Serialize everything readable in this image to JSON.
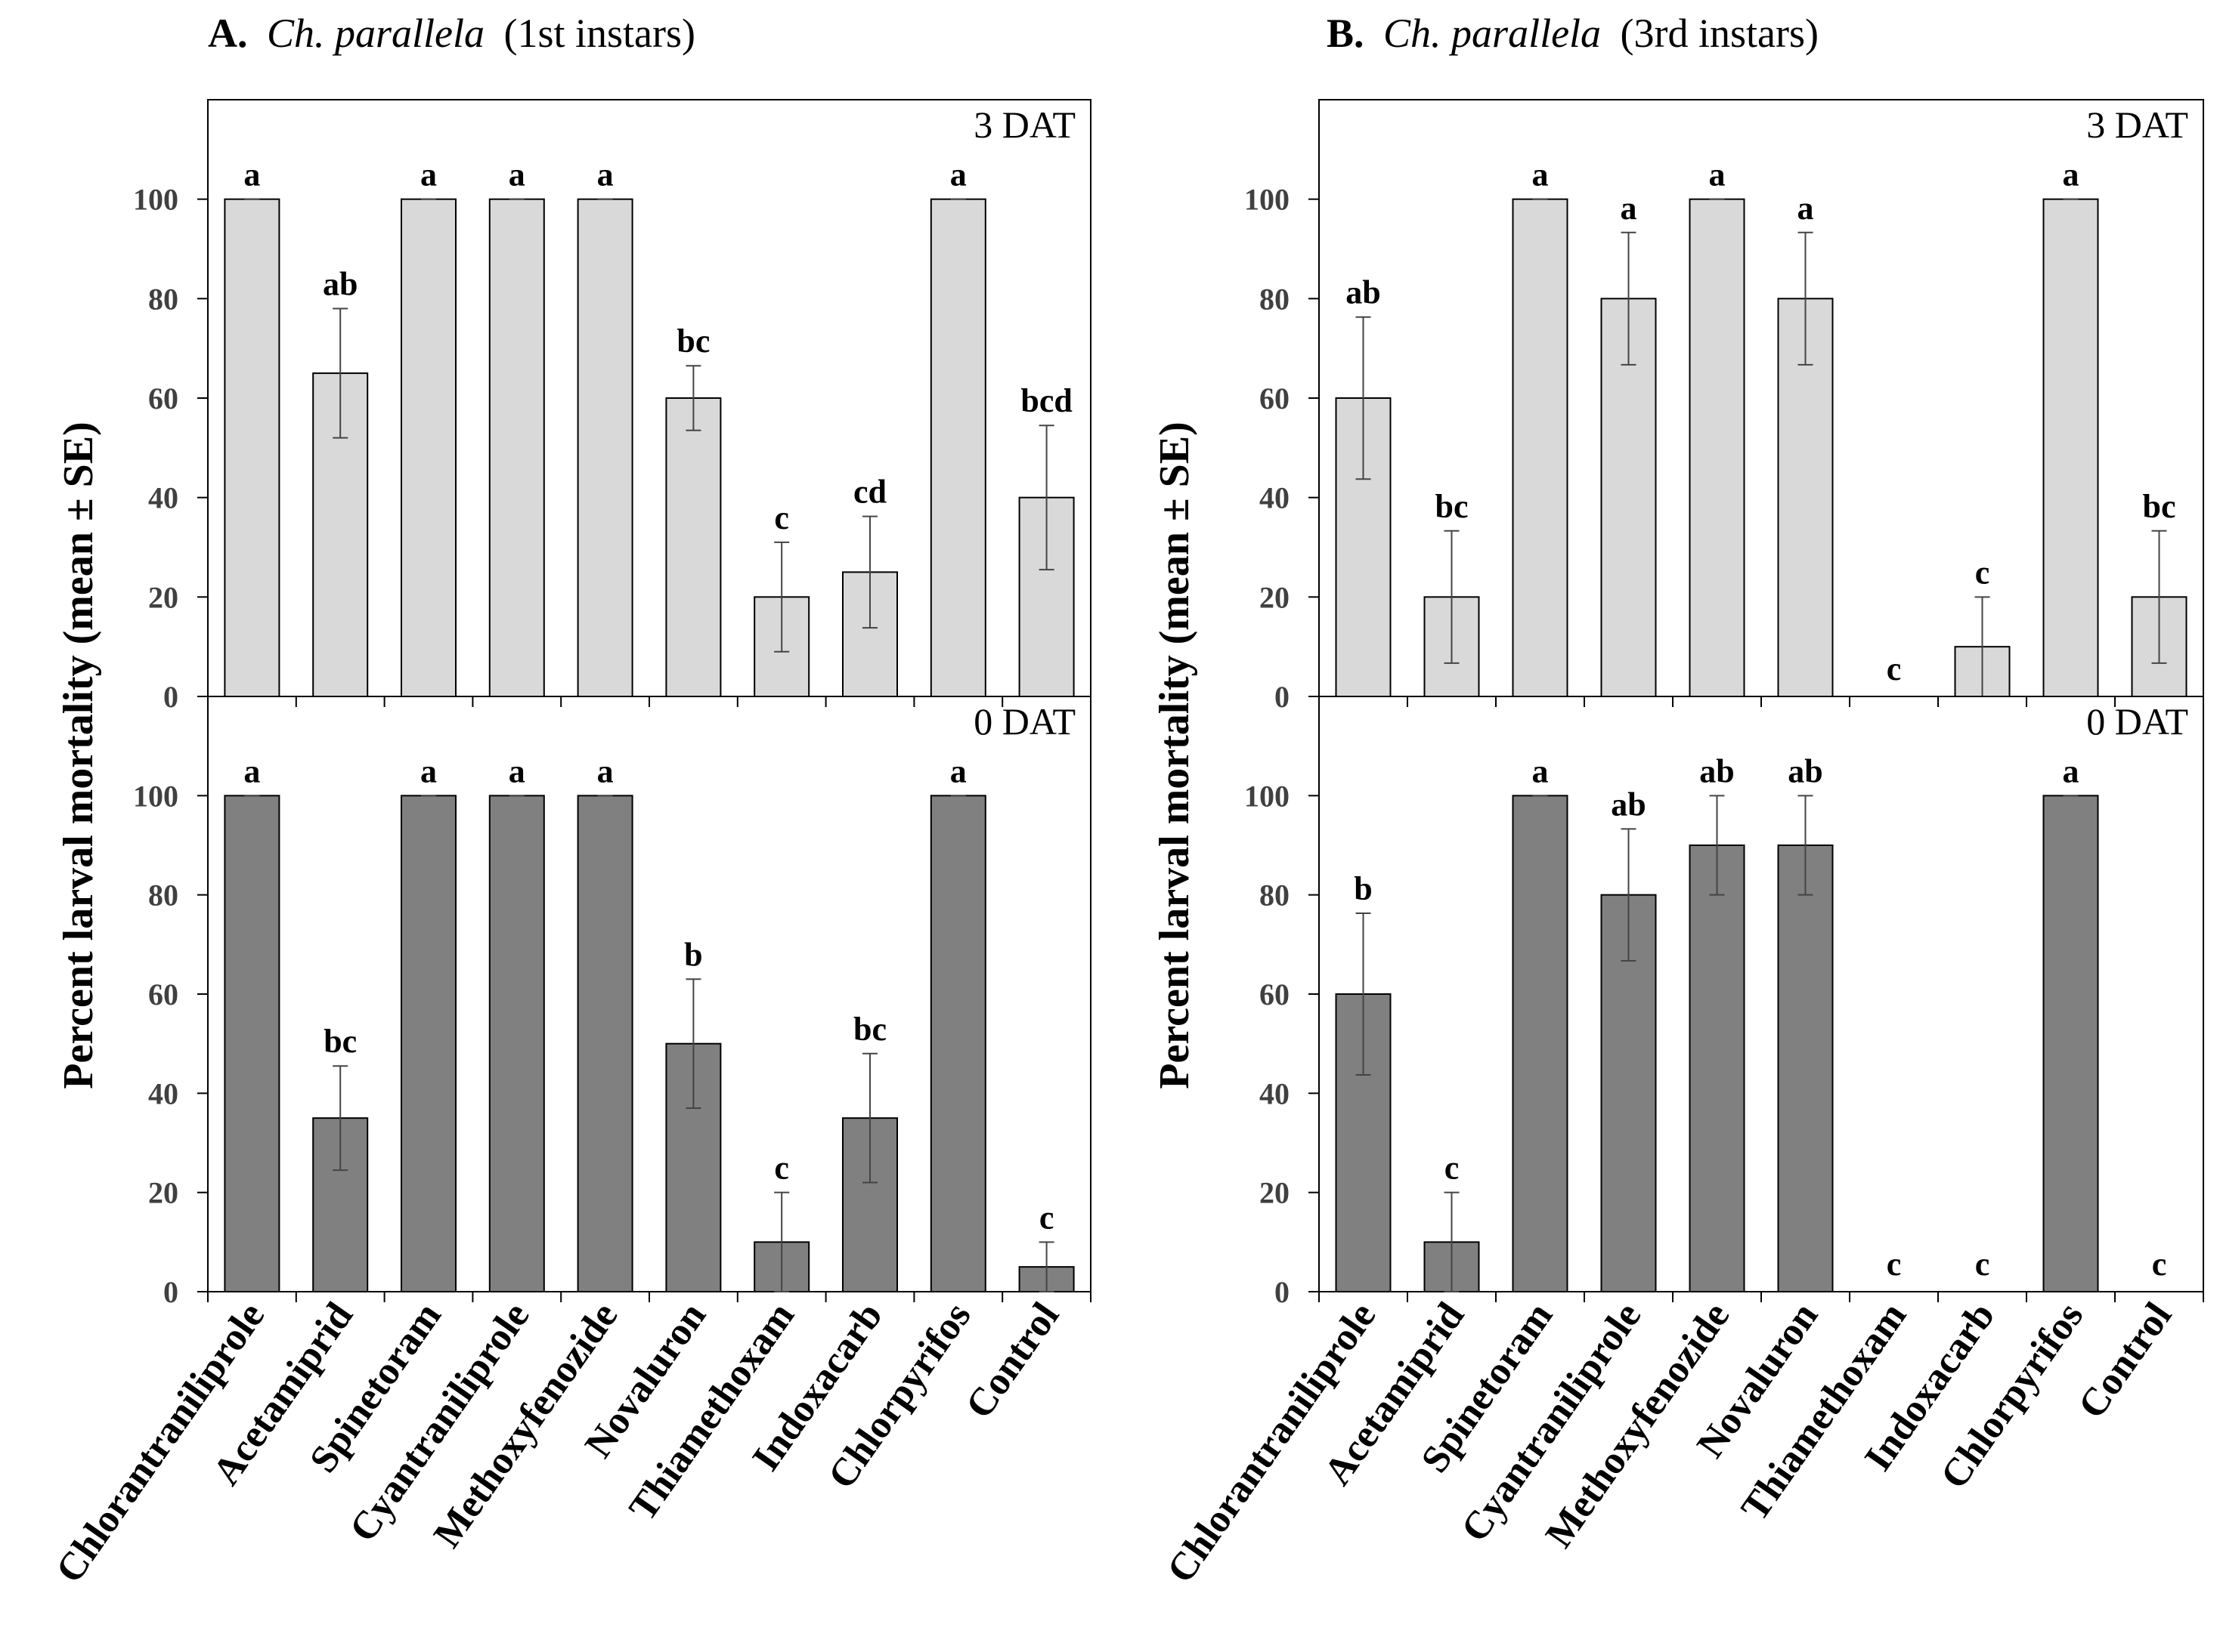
{
  "colors": {
    "top_bar_fill": "#d9d9d9",
    "bottom_bar_fill": "#808080",
    "bar_stroke": "#000000",
    "axis": "#000000",
    "tick_label": "#404040"
  },
  "y_axis_label": "Percent larval mortality (mean ± SE)",
  "categories": [
    "Chlorantraniliprole",
    "Acetamiprid",
    "Spinetoram",
    "Cyantraniliprole",
    "Methoxyfenozide",
    "Novaluron",
    "Thiamethoxam",
    "Indoxacarb",
    "Chlorpyrifos",
    "Control"
  ],
  "chart_data": [
    {
      "type": "bar",
      "panel_letter": "A.",
      "panel_species": "Ch. parallela",
      "panel_stage": "(1st instars)",
      "subpanels": [
        {
          "label": "3 DAT",
          "fill_key": "top_bar_fill",
          "ylim": [
            0,
            120
          ],
          "yticks": [
            0,
            20,
            40,
            60,
            80,
            100
          ],
          "values": [
            100,
            65,
            100,
            100,
            100,
            60,
            20,
            25,
            100,
            40
          ],
          "errors": [
            0,
            13,
            0,
            0,
            0,
            6.5,
            11,
            11.2,
            0,
            14.5
          ],
          "letters": [
            "a",
            "ab",
            "a",
            "a",
            "a",
            "bc",
            "c",
            "cd",
            "a",
            "bcd"
          ]
        },
        {
          "label": "0 DAT",
          "fill_key": "bottom_bar_fill",
          "ylim": [
            0,
            120
          ],
          "yticks": [
            0,
            20,
            40,
            60,
            80,
            100
          ],
          "values": [
            100,
            35,
            100,
            100,
            100,
            50,
            10,
            35,
            100,
            5
          ],
          "errors": [
            0,
            10.5,
            0,
            0,
            0,
            13,
            10,
            13,
            0,
            5
          ],
          "letters": [
            "a",
            "bc",
            "a",
            "a",
            "a",
            "b",
            "c",
            "bc",
            "a",
            "c"
          ]
        }
      ]
    },
    {
      "type": "bar",
      "panel_letter": "B.",
      "panel_species": "Ch. parallela",
      "panel_stage": "(3rd instars)",
      "subpanels": [
        {
          "label": "3 DAT",
          "fill_key": "top_bar_fill",
          "ylim": [
            0,
            120
          ],
          "yticks": [
            0,
            20,
            40,
            60,
            80,
            100
          ],
          "values": [
            60,
            20,
            100,
            80,
            100,
            80,
            0,
            10,
            100,
            20
          ],
          "errors": [
            16.3,
            13.3,
            0,
            13.3,
            0,
            13.3,
            0,
            10,
            0,
            13.3
          ],
          "letters": [
            "ab",
            "bc",
            "a",
            "a",
            "a",
            "a",
            "c",
            "c",
            "a",
            "bc"
          ]
        },
        {
          "label": "0 DAT",
          "fill_key": "bottom_bar_fill",
          "ylim": [
            0,
            120
          ],
          "yticks": [
            0,
            20,
            40,
            60,
            80,
            100
          ],
          "values": [
            60,
            10,
            100,
            80,
            90,
            90,
            0,
            0,
            100,
            0
          ],
          "errors": [
            16.3,
            10,
            0,
            13.3,
            10,
            10,
            0,
            0,
            0,
            0
          ],
          "letters": [
            "b",
            "c",
            "a",
            "ab",
            "ab",
            "ab",
            "c",
            "c",
            "a",
            "c"
          ]
        }
      ]
    }
  ]
}
